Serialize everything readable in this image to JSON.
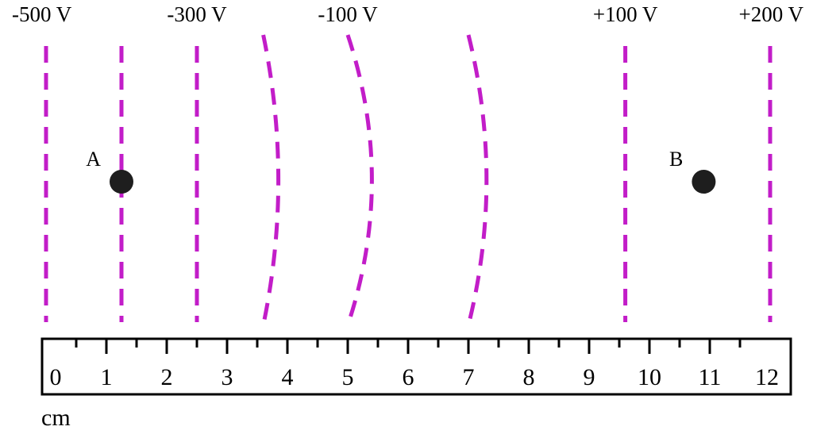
{
  "equipotentials": [
    {
      "label": "-500 V",
      "x_cm": 0,
      "shape": "straight"
    },
    {
      "label": "",
      "x_cm": 1.25,
      "shape": "straight"
    },
    {
      "label": "-300 V",
      "x_cm": 2.5,
      "shape": "straight"
    },
    {
      "label": "",
      "x_cm": 3.6,
      "x_mid_cm": 3.85,
      "shape": "curved"
    },
    {
      "label": "-100 V",
      "x_cm": 5.0,
      "x_mid_cm": 5.4,
      "shape": "curved"
    },
    {
      "label": "",
      "x_cm": 7.0,
      "x_mid_cm": 7.3,
      "shape": "curved"
    },
    {
      "label": "+100 V",
      "x_cm": 9.6,
      "shape": "straight"
    },
    {
      "label": "+200 V",
      "x_cm": 12.0,
      "shape": "straight"
    }
  ],
  "points": [
    {
      "label": "A",
      "x_cm": 1.25
    },
    {
      "label": "B",
      "x_cm": 10.9
    }
  ],
  "ruler": {
    "min": 0,
    "max": 12,
    "tick_labels": [
      "0",
      "1",
      "2",
      "3",
      "4",
      "5",
      "6",
      "7",
      "8",
      "9",
      "10",
      "11",
      "12"
    ],
    "unit": "cm"
  },
  "colors": {
    "equipotential": "#C21DC8",
    "point": "#1E1E1E",
    "ruler": "#000000"
  }
}
